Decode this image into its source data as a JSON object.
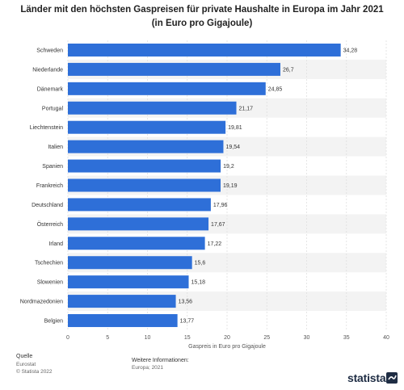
{
  "title": "Länder mit den höchsten Gaspreisen für private Haushalte in Europa im Jahr 2021 (in Euro pro Gigajoule)",
  "chart_data": {
    "type": "bar",
    "orientation": "horizontal",
    "categories": [
      "Schweden",
      "Niederlande",
      "Dänemark",
      "Portugal",
      "Liechtenstein",
      "Italien",
      "Spanien",
      "Frankreich",
      "Deutschland",
      "Österreich",
      "Irland",
      "Tschechien",
      "Slowenien",
      "Nordmazedonien",
      "Belgien"
    ],
    "values": [
      34.28,
      26.7,
      24.85,
      21.17,
      19.81,
      19.54,
      19.2,
      19.19,
      17.96,
      17.67,
      17.22,
      15.6,
      15.18,
      13.56,
      13.77
    ],
    "value_labels": [
      "34,28",
      "26,7",
      "24,85",
      "21,17",
      "19,81",
      "19,54",
      "19,2",
      "19,19",
      "17,96",
      "17,67",
      "17,22",
      "15,6",
      "15,18",
      "13,56",
      "13,77"
    ],
    "xlabel": "Gaspreis in Euro pro Gigajoule",
    "xlim": [
      0,
      40
    ],
    "xticks": [
      0,
      5,
      10,
      15,
      20,
      25,
      30,
      35,
      40
    ],
    "bar_color": "#2e6fd8",
    "stripe_color": "#f3f3f3",
    "grid": true
  },
  "footer": {
    "source_heading": "Quelle",
    "source_name": "Eurostat",
    "copyright": "© Statista 2022",
    "info_heading": "Weitere Informationen:",
    "info_text": "Europa; 2021"
  },
  "brand": "statista"
}
